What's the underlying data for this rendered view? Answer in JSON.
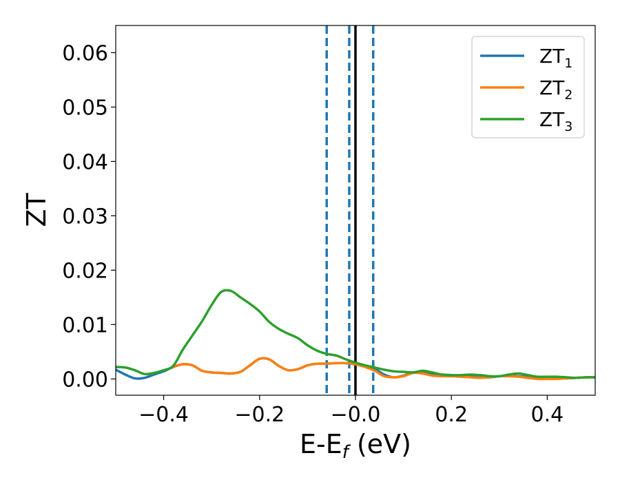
{
  "chart_data": {
    "type": "line",
    "xlabel": "E-E",
    "xlabel_sub": "f",
    "xlabel_unit": " (eV)",
    "ylabel": "ZT",
    "xlim": [
      -0.5,
      0.5
    ],
    "ylim": [
      -0.003,
      0.065
    ],
    "grid": false,
    "legend_position": "top-right",
    "x_ticks": [
      -0.4,
      -0.2,
      0.0,
      0.2,
      0.4
    ],
    "x_tick_labels": [
      "−0.4",
      "−0.2",
      "−0.0",
      "0.2",
      "0.4"
    ],
    "y_ticks": [
      0.0,
      0.01,
      0.02,
      0.03,
      0.04,
      0.05,
      0.06
    ],
    "y_tick_labels": [
      "0.00",
      "0.01",
      "0.02",
      "0.03",
      "0.04",
      "0.05",
      "0.06"
    ],
    "vertical_lines": [
      {
        "x": -0.06,
        "style": "dashed",
        "color": "#1f77b4"
      },
      {
        "x": -0.013,
        "style": "dashed",
        "color": "#1f77b4"
      },
      {
        "x": 0.0,
        "style": "solid",
        "color": "#000000"
      },
      {
        "x": 0.037,
        "style": "dashed",
        "color": "#1f77b4"
      }
    ],
    "series": [
      {
        "name": "ZT",
        "name_sub": "1",
        "color": "#1f77b4",
        "x": [
          -0.5,
          -0.48,
          -0.46,
          -0.44,
          -0.42,
          -0.4,
          -0.38,
          -0.36,
          -0.34,
          -0.32,
          -0.3,
          -0.28,
          -0.26,
          -0.24,
          -0.22,
          -0.2,
          -0.18,
          -0.16,
          -0.14,
          -0.12,
          -0.1,
          -0.08,
          -0.06,
          -0.04,
          -0.02,
          0.0,
          0.02,
          0.04,
          0.06,
          0.08,
          0.1,
          0.12,
          0.14,
          0.16,
          0.18,
          0.2,
          0.22,
          0.24,
          0.26,
          0.28,
          0.3,
          0.32,
          0.34,
          0.36,
          0.38,
          0.4,
          0.42,
          0.44,
          0.46,
          0.48,
          0.5
        ],
        "y": [
          0.0017,
          0.0008,
          0.0001,
          0.0002,
          0.0008,
          0.0014,
          0.0022,
          0.0027,
          0.0025,
          0.0015,
          0.0012,
          0.0011,
          0.001,
          0.0013,
          0.0025,
          0.0037,
          0.0036,
          0.0024,
          0.0016,
          0.0018,
          0.0025,
          0.0028,
          0.0028,
          0.0029,
          0.0029,
          0.0027,
          0.0024,
          0.0019,
          0.0008,
          0.0003,
          0.0006,
          0.0012,
          0.0012,
          0.001,
          0.0008,
          0.0007,
          0.0006,
          0.0005,
          0.0004,
          0.0003,
          0.0005,
          0.0006,
          0.0005,
          0.0004,
          0.0003,
          0.0003,
          0.0001,
          0.0001,
          0.0002,
          0.0003,
          0.0003
        ]
      },
      {
        "name": "ZT",
        "name_sub": "2",
        "color": "#ff7f0e",
        "x": [
          -0.38,
          -0.36,
          -0.34,
          -0.32,
          -0.3,
          -0.28,
          -0.26,
          -0.24,
          -0.22,
          -0.2,
          -0.18,
          -0.16,
          -0.14,
          -0.12,
          -0.1,
          -0.08,
          -0.06,
          -0.04,
          -0.02,
          0.0,
          0.02,
          0.04,
          0.06,
          0.08,
          0.1,
          0.12,
          0.14,
          0.16,
          0.18,
          0.2,
          0.22,
          0.24,
          0.26,
          0.28,
          0.3,
          0.32,
          0.34,
          0.36,
          0.38,
          0.4,
          0.42,
          0.44,
          0.46,
          0.48,
          0.5
        ],
        "y": [
          0.0022,
          0.0027,
          0.0025,
          0.0015,
          0.0012,
          0.0011,
          0.001,
          0.0013,
          0.0025,
          0.0037,
          0.0036,
          0.0024,
          0.0016,
          0.0018,
          0.0025,
          0.0028,
          0.0028,
          0.0029,
          0.0029,
          0.0027,
          0.0022,
          0.0015,
          0.0005,
          0.0003,
          0.0005,
          0.0011,
          0.001,
          0.0006,
          0.0005,
          0.0005,
          0.0004,
          0.0003,
          0.0002,
          0.0003,
          0.0005,
          0.0005,
          0.0004,
          0.0002,
          0.0,
          0.0,
          0.0,
          0.0001,
          0.0002,
          0.0003,
          0.0003
        ]
      },
      {
        "name": "ZT",
        "name_sub": "3",
        "color": "#2ca02c",
        "x": [
          -0.5,
          -0.48,
          -0.46,
          -0.44,
          -0.42,
          -0.4,
          -0.38,
          -0.36,
          -0.34,
          -0.32,
          -0.3,
          -0.28,
          -0.26,
          -0.24,
          -0.22,
          -0.2,
          -0.18,
          -0.16,
          -0.14,
          -0.12,
          -0.1,
          -0.08,
          -0.06,
          -0.04,
          -0.02,
          0.0,
          0.02,
          0.04,
          0.06,
          0.08,
          0.1,
          0.12,
          0.14,
          0.16,
          0.18,
          0.2,
          0.22,
          0.24,
          0.26,
          0.28,
          0.3,
          0.32,
          0.34,
          0.36,
          0.38,
          0.4,
          0.42,
          0.44,
          0.46,
          0.48,
          0.5
        ],
        "y": [
          0.0022,
          0.0021,
          0.0016,
          0.0009,
          0.0011,
          0.0016,
          0.0024,
          0.0054,
          0.008,
          0.0106,
          0.0136,
          0.016,
          0.0162,
          0.015,
          0.0138,
          0.0124,
          0.0105,
          0.0092,
          0.0083,
          0.0075,
          0.0062,
          0.0052,
          0.0046,
          0.0043,
          0.0036,
          0.003,
          0.0025,
          0.0021,
          0.0017,
          0.0014,
          0.0013,
          0.0012,
          0.0015,
          0.0012,
          0.0008,
          0.0007,
          0.0007,
          0.0008,
          0.0007,
          0.0005,
          0.0005,
          0.0008,
          0.001,
          0.0007,
          0.0004,
          0.0004,
          0.0004,
          0.0003,
          0.0002,
          0.0003,
          0.0003
        ]
      }
    ]
  }
}
